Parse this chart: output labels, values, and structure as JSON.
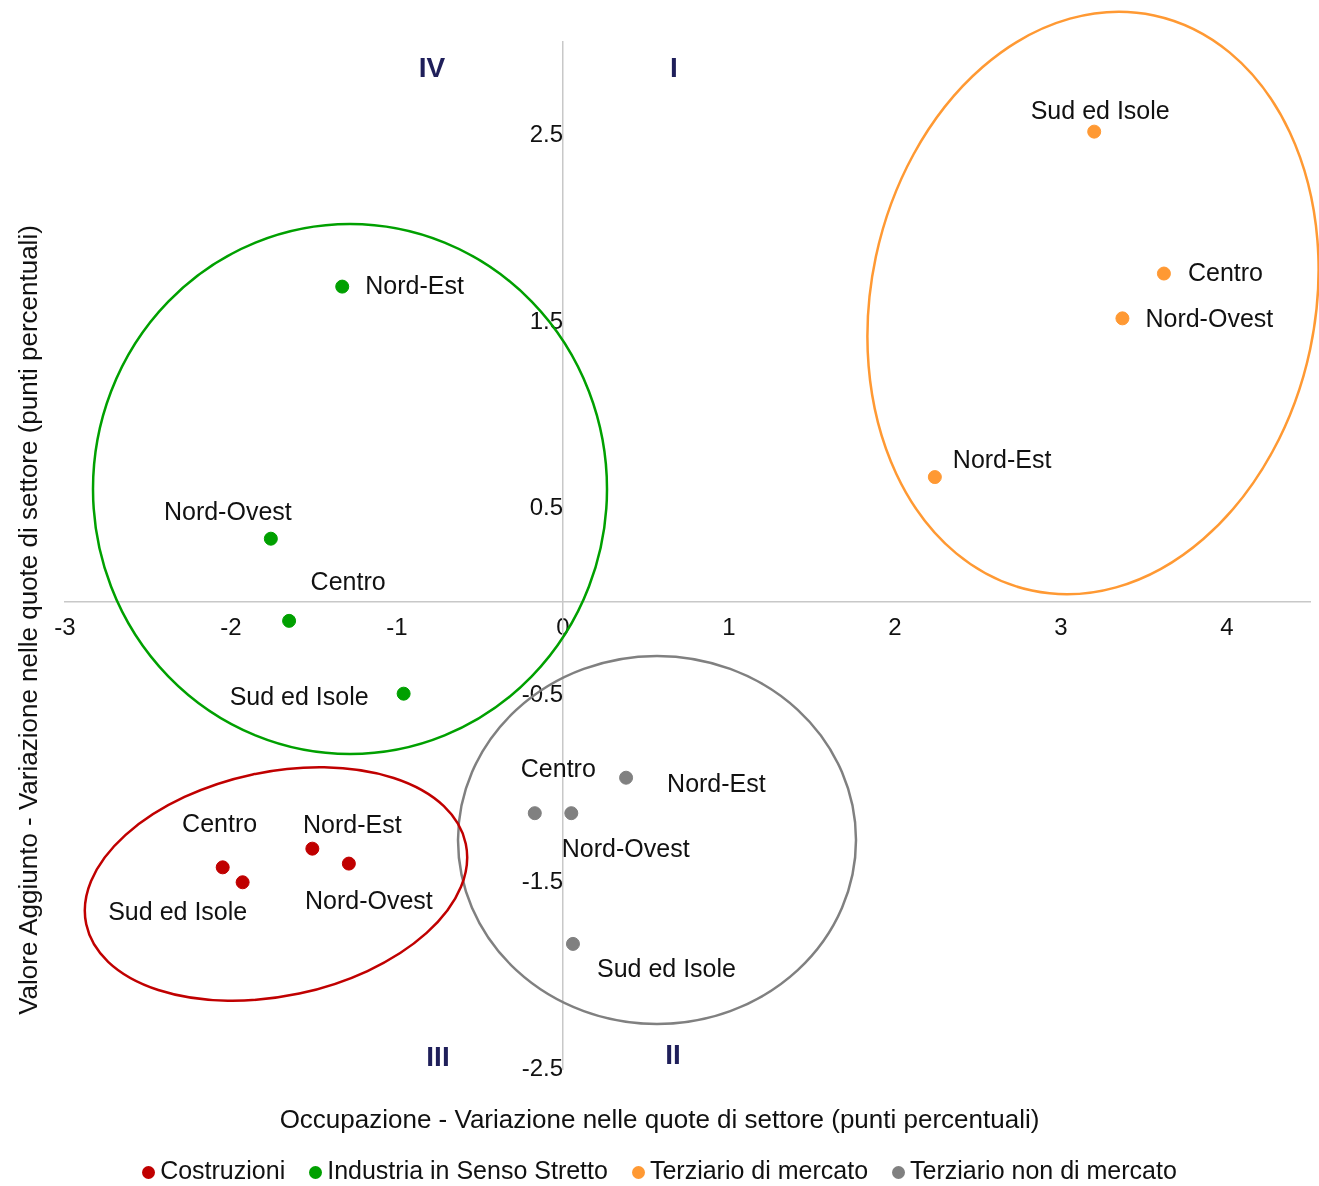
{
  "chart_data": {
    "type": "scatter",
    "xlabel": "Occupazione - Variazione nelle quote di settore (punti percentuali)",
    "ylabel": "Valore Aggiunto - Variazione nelle quote di settore (punti percentuali)",
    "xlim": [
      -3,
      4.5
    ],
    "ylim": [
      -2.5,
      3
    ],
    "xticks": [
      -3,
      -2,
      -1,
      0,
      1,
      2,
      3,
      4
    ],
    "yticks": [
      -2.5,
      -1.5,
      -0.5,
      0.5,
      1.5,
      2.5
    ],
    "legend": "bottom",
    "marker": "circle",
    "series": [
      {
        "name": "Costruzioni",
        "color": "#c00000",
        "x": [
          -1.93,
          -2.05,
          -1.51,
          -1.29
        ],
        "values": [
          -1.5,
          -1.42,
          -1.32,
          -1.4
        ]
      },
      {
        "name": "Industria in Senso Stretto",
        "color": "#00a000",
        "x": [
          -1.33,
          -1.76,
          -1.65,
          -0.96
        ],
        "values": [
          1.69,
          0.34,
          -0.1,
          -0.49
        ]
      },
      {
        "name": "Terziario di mercato",
        "color": "#ff9933",
        "x": [
          3.2,
          3.62,
          3.37,
          2.24
        ],
        "values": [
          2.52,
          1.76,
          1.52,
          0.67
        ]
      },
      {
        "name": "Terziario non di mercato",
        "color": "#808080",
        "x": [
          0.38,
          -0.17,
          0.05,
          0.06
        ],
        "values": [
          -0.94,
          -1.13,
          -1.13,
          -1.83
        ]
      }
    ],
    "annotations": [
      {
        "text": "Nord-Est",
        "x": -1.33,
        "y": 1.69
      },
      {
        "text": "Nord-Ovest",
        "x": -1.76,
        "y": 0.34
      },
      {
        "text": "Centro",
        "x": -1.65,
        "y": -0.1
      },
      {
        "text": "Sud ed Isole",
        "x": -0.96,
        "y": -0.49
      },
      {
        "text": "Sud ed Isole",
        "x": 3.2,
        "y": 2.52
      },
      {
        "text": "Centro",
        "x": 3.62,
        "y": 1.76
      },
      {
        "text": "Nord-Ovest",
        "x": 3.37,
        "y": 1.52
      },
      {
        "text": "Nord-Est",
        "x": 2.24,
        "y": 0.67
      },
      {
        "text": "Nord-Est",
        "x": 0.38,
        "y": -0.94
      },
      {
        "text": "Nord-Ovest",
        "x": -0.17,
        "y": -1.13
      },
      {
        "text": "Centro",
        "x": 0.05,
        "y": -1.13
      },
      {
        "text": "Sud ed Isole",
        "x": 0.06,
        "y": -1.83
      },
      {
        "text": "Centro",
        "x": -1.93,
        "y": -1.5
      },
      {
        "text": "Sud ed Isole",
        "x": -2.05,
        "y": -1.42
      },
      {
        "text": "Nord-Est",
        "x": -1.51,
        "y": -1.32
      },
      {
        "text": "Nord-Ovest",
        "x": -1.29,
        "y": -1.4
      },
      "IV",
      "I",
      "III",
      "II"
    ]
  }
}
